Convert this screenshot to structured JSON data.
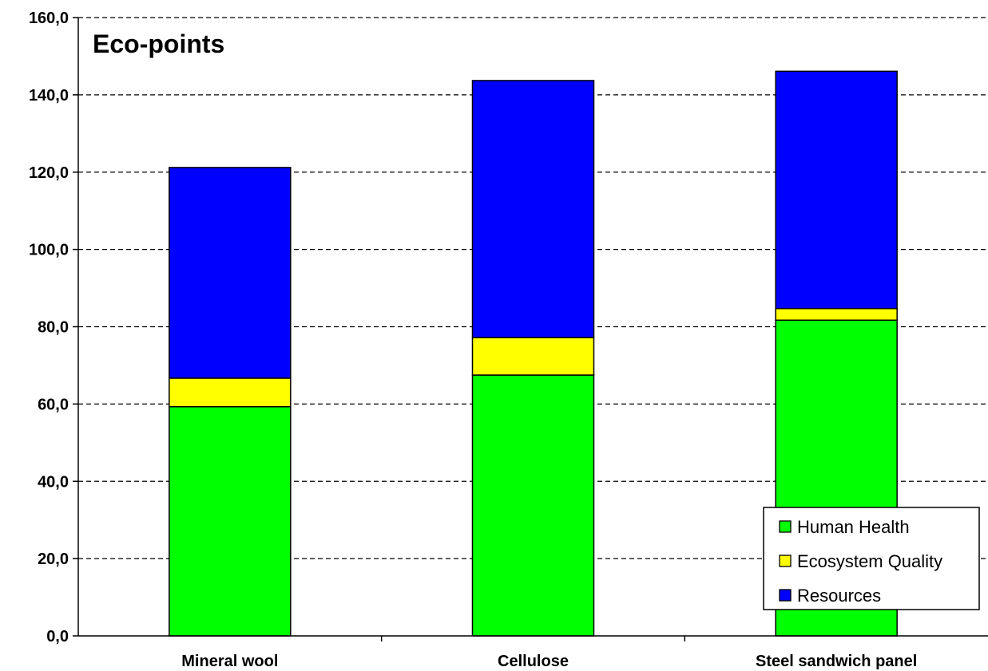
{
  "chart_data": {
    "type": "bar",
    "stacked": true,
    "title": "Eco-points",
    "categories": [
      "Mineral wool",
      "Cellulose",
      "Steel sandwich panel"
    ],
    "series": [
      {
        "name": "Human Health",
        "color": "#00ff00",
        "values": [
          59.3,
          67.5,
          81.7
        ]
      },
      {
        "name": "Ecosystem Quality",
        "color": "#ffff00",
        "values": [
          7.4,
          9.7,
          3.0
        ]
      },
      {
        "name": "Resources",
        "color": "#0000ff",
        "values": [
          54.5,
          66.5,
          61.4
        ]
      }
    ],
    "ylim": [
      0,
      160
    ],
    "yticks": [
      0,
      20,
      40,
      60,
      80,
      100,
      120,
      140,
      160
    ],
    "ytick_labels": [
      "0,0",
      "20,0",
      "40,0",
      "60,0",
      "80,0",
      "100,0",
      "120,0",
      "140,0",
      "160,0"
    ],
    "grid": true,
    "legend_position": "bottom-right"
  }
}
